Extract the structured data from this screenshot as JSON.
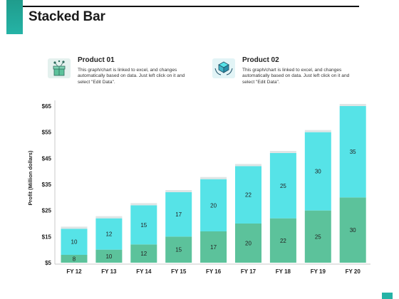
{
  "title": "Stacked Bar",
  "legend": [
    {
      "name": "Product 01",
      "icon": "gift-box-icon",
      "description": "This graph/chart is linked to excel, and changes automatically based on data. Just left click on it and select \"Edit Data\".",
      "color": "#5cc29b"
    },
    {
      "name": "Product 02",
      "icon": "hands-holding-box-icon",
      "description": "This graph/chart is linked to excel, and changes automatically based on data. Just left click on it and select \"Edit Data\".",
      "color": "#56e3e7"
    }
  ],
  "colors": {
    "accent": "#25b3a6",
    "series1": "#5cc29b",
    "series2": "#56e3e7",
    "cap": "#dfe5e5",
    "axis": "#c8c8c8"
  },
  "chart_data": {
    "type": "bar",
    "stacked": true,
    "categories": [
      "FY 12",
      "FY 13",
      "FY 14",
      "FY 15",
      "FY 16",
      "FY 17",
      "FY 18",
      "FY 19",
      "FY 20"
    ],
    "series": [
      {
        "name": "Product 01",
        "values": [
          8,
          10,
          12,
          15,
          17,
          20,
          22,
          25,
          30
        ],
        "labels": [
          "8",
          "10",
          "12",
          "15",
          "17",
          "20",
          "22",
          "25",
          "30"
        ]
      },
      {
        "name": "Product 02",
        "values": [
          10,
          12,
          15,
          17,
          20,
          22,
          25,
          30,
          35
        ],
        "labels": [
          "10",
          "12",
          "15",
          "17",
          "20",
          "22",
          "25",
          "30",
          "35"
        ]
      }
    ],
    "ylabel": "Profit  (Million dollars)",
    "xlabel": "",
    "yticks": [
      5,
      15,
      25,
      35,
      45,
      55,
      65
    ],
    "ytick_labels": [
      "$5",
      "$15",
      "$25",
      "$35",
      "$45",
      "$55",
      "$65"
    ],
    "ylim": [
      5,
      65
    ],
    "grid": false,
    "legend_position": "top"
  }
}
